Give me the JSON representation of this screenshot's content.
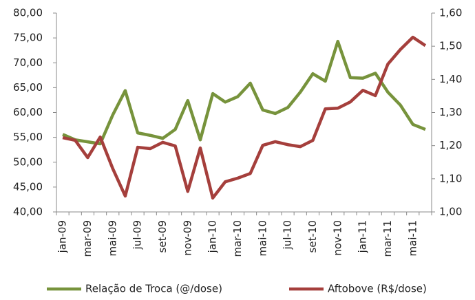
{
  "chart_data": {
    "type": "line",
    "categories": [
      "jan-09",
      null,
      "mar-09",
      null,
      "mai-09",
      null,
      "jul-09",
      null,
      "set-09",
      null,
      "nov-09",
      null,
      "jan-10",
      null,
      "mar-10",
      null,
      "mai-10",
      null,
      "jul-10",
      null,
      "set-10",
      null,
      "nov-10",
      null,
      "jan-11",
      null,
      "mar-11",
      null,
      "mai-11",
      null
    ],
    "series": [
      {
        "name": "Relação de Troca (@/dose)",
        "color": "#77933c",
        "values": [
          55.6,
          54.5,
          54.1,
          53.7,
          59.5,
          64.4,
          55.9,
          55.4,
          54.8,
          56.6,
          62.4,
          54.5,
          63.8,
          62.1,
          63.2,
          65.9,
          60.5,
          59.8,
          61.0,
          64.1,
          67.8,
          66.3,
          74.3,
          67.0,
          66.9,
          67.9,
          64.1,
          61.5,
          57.6,
          56.6
        ]
      },
      {
        "name": "Aftobove (R$/dose)",
        "color": "#a53f3c",
        "axis": "y2",
        "values": [
          1.224,
          1.216,
          1.164,
          1.226,
          1.131,
          1.048,
          1.195,
          1.191,
          1.21,
          1.199,
          1.062,
          1.193,
          1.042,
          1.091,
          1.102,
          1.116,
          1.201,
          1.212,
          1.203,
          1.197,
          1.216,
          1.311,
          1.313,
          1.332,
          1.367,
          1.351,
          1.446,
          1.49,
          1.527,
          1.502
        ]
      }
    ],
    "ylim": [
      40,
      80
    ],
    "yticks": [
      {
        "value": 40,
        "label": "40,00"
      },
      {
        "value": 45,
        "label": "45,00"
      },
      {
        "value": 50,
        "label": "50,00"
      },
      {
        "value": 55,
        "label": "55,00"
      },
      {
        "value": 60,
        "label": "60,00"
      },
      {
        "value": 65,
        "label": "65,00"
      },
      {
        "value": 70,
        "label": "70,00"
      },
      {
        "value": 75,
        "label": "75,00"
      },
      {
        "value": 80,
        "label": "80,00"
      }
    ],
    "y2lim": [
      1.0,
      1.6
    ],
    "y2ticks": [
      {
        "value": 1.0,
        "label": "1,00"
      },
      {
        "value": 1.1,
        "label": "1,10"
      },
      {
        "value": 1.2,
        "label": "1,20"
      },
      {
        "value": 1.3,
        "label": "1,30"
      },
      {
        "value": 1.4,
        "label": "1,40"
      },
      {
        "value": 1.5,
        "label": "1,50"
      },
      {
        "value": 1.6,
        "label": "1,60"
      }
    ],
    "grid": false,
    "legend": "bottom"
  }
}
